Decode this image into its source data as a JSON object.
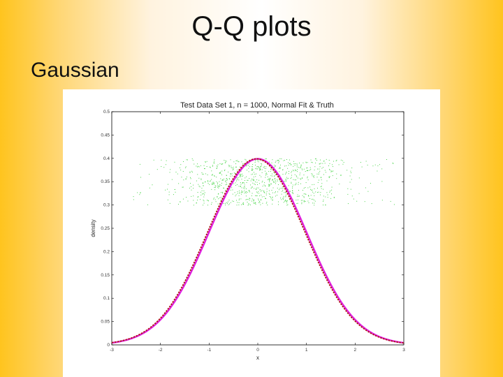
{
  "slide": {
    "title": "Q-Q plots",
    "subtitle": "Gaussian"
  },
  "chart_data": {
    "type": "line",
    "title": "Test Data Set 1, n = 1000, Normal Fit & Truth",
    "xlabel": "x",
    "ylabel": "density",
    "xlim": [
      -3,
      3
    ],
    "ylim": [
      0,
      0.5
    ],
    "x_ticks": [
      "-3",
      "-2",
      "-1",
      "0",
      "1",
      "2",
      "3"
    ],
    "y_ticks": [
      "0",
      "0.05",
      "0.1",
      "0.15",
      "0.2",
      "0.25",
      "0.3",
      "0.35",
      "0.4",
      "0.45",
      "0.5"
    ],
    "grid": false,
    "series": [
      {
        "kind": "density",
        "mean": 0.0,
        "sd": 1.0,
        "color": "#e020e0",
        "style": "solid"
      },
      {
        "kind": "density",
        "mean": -0.03,
        "sd": 1.0,
        "color": "#b01818",
        "style": "dashed"
      },
      {
        "kind": "jittered-data",
        "n": 1000,
        "x_range": [
          -2.7,
          2.95
        ],
        "y_band": [
          0.3,
          0.4
        ],
        "color": "#22cc22"
      }
    ]
  }
}
